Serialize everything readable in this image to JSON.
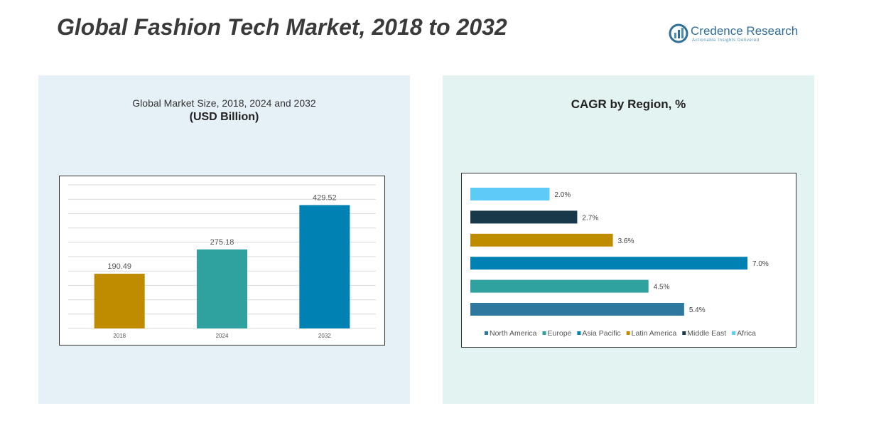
{
  "header": {
    "title": "Global Fashion Tech Market, 2018 to 2032",
    "logo_name": "Credence Research",
    "logo_tagline": "Actionable Insights Delivered"
  },
  "left_panel": {
    "subtitle": "Global Market Size, 2018, 2024 and 2032",
    "unit": "(USD Billion)"
  },
  "right_panel": {
    "title": "CAGR by Region, %"
  },
  "chart_data": [
    {
      "type": "bar",
      "title": "Global Market Size, 2018, 2024 and 2032",
      "ylabel": "USD Billion",
      "categories": [
        "2018",
        "2024",
        "2032"
      ],
      "values": [
        190.49,
        275.18,
        429.52
      ],
      "value_labels": [
        "190.49",
        "275.18",
        "429.52"
      ],
      "colors": [
        "#bf8c00",
        "#2fa2a0",
        "#0081b4"
      ],
      "ylim": [
        0,
        500
      ],
      "grid": true
    },
    {
      "type": "bar",
      "orientation": "horizontal",
      "title": "CAGR by Region, %",
      "categories": [
        "Africa",
        "Middle East",
        "Latin America",
        "Asia Pacific",
        "Europe",
        "North America"
      ],
      "values": [
        2.0,
        2.7,
        3.6,
        7.0,
        4.5,
        5.4
      ],
      "value_labels": [
        "2.0%",
        "2.7%",
        "3.6%",
        "7.0%",
        "4.5%",
        "5.4%"
      ],
      "colors": [
        "#5ccbf5",
        "#17394a",
        "#bf8c00",
        "#0081b4",
        "#2fa2a0",
        "#2e78a0"
      ],
      "legend": {
        "position": "bottom",
        "items": [
          {
            "label": "North America",
            "color": "#2e78a0"
          },
          {
            "label": "Europe",
            "color": "#2fa2a0"
          },
          {
            "label": "Asia Pacific",
            "color": "#0081b4"
          },
          {
            "label": "Latin America",
            "color": "#bf8c00"
          },
          {
            "label": "Middle East",
            "color": "#17394a"
          },
          {
            "label": "Africa",
            "color": "#5ccbf5"
          }
        ]
      },
      "xlim": [
        0,
        7.0
      ],
      "grid": false
    }
  ]
}
